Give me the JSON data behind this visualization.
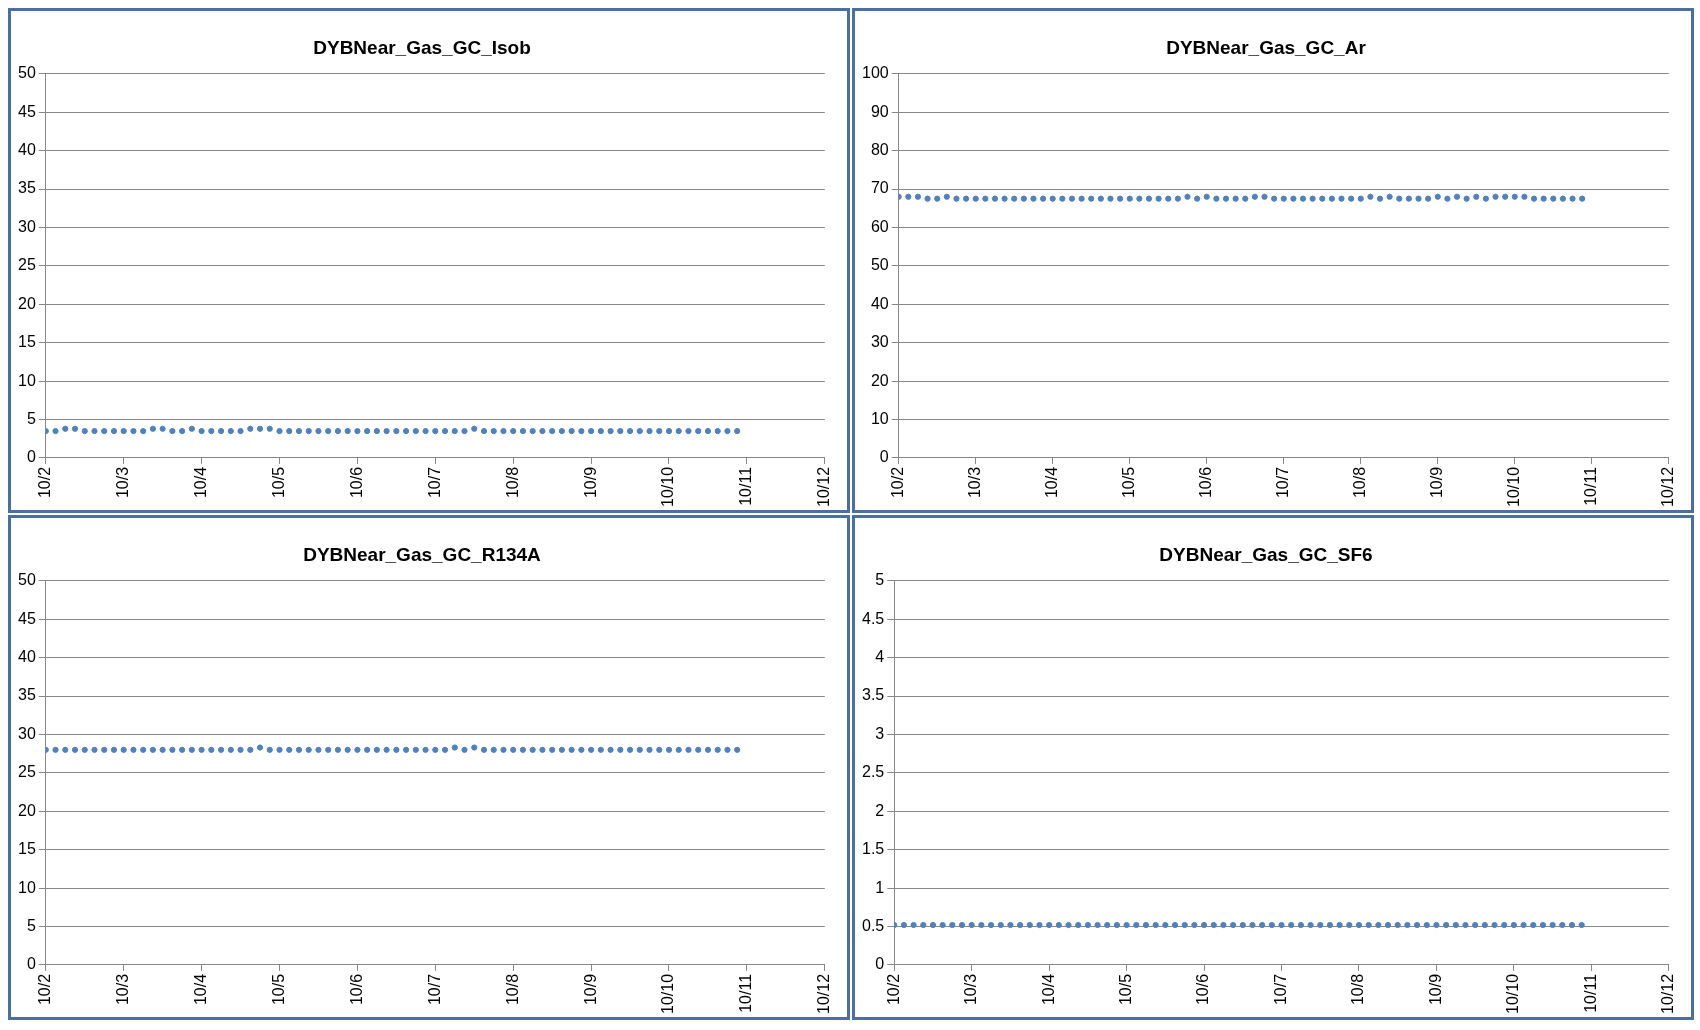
{
  "chart_data": [
    {
      "type": "scatter",
      "title": "DYBNear_Gas_GC_Isob",
      "marker": "circle",
      "grid": "y",
      "legend": false,
      "x": [
        "--10-02T00:00",
        "--10-02T03:00",
        "--10-02T06:00",
        "--10-02T09:00",
        "--10-02T12:00",
        "--10-02T15:00",
        "--10-02T18:00",
        "--10-02T21:00",
        "--10-03T00:00",
        "--10-03T03:00",
        "--10-03T06:00",
        "--10-03T09:00",
        "--10-03T12:00",
        "--10-03T15:00",
        "--10-03T18:00",
        "--10-03T21:00",
        "--10-04T00:00",
        "--10-04T03:00",
        "--10-04T06:00",
        "--10-04T09:00",
        "--10-04T12:00",
        "--10-04T15:00",
        "--10-04T18:00",
        "--10-04T21:00",
        "--10-05T00:00",
        "--10-05T03:00",
        "--10-05T06:00",
        "--10-05T09:00",
        "--10-05T12:00",
        "--10-05T15:00",
        "--10-05T18:00",
        "--10-05T21:00",
        "--10-06T00:00",
        "--10-06T03:00",
        "--10-06T06:00",
        "--10-06T09:00",
        "--10-06T12:00",
        "--10-06T15:00",
        "--10-06T18:00",
        "--10-06T21:00",
        "--10-07T00:00",
        "--10-07T03:00",
        "--10-07T06:00",
        "--10-07T09:00",
        "--10-07T12:00",
        "--10-07T15:00",
        "--10-07T18:00",
        "--10-07T21:00",
        "--10-08T00:00",
        "--10-08T03:00",
        "--10-08T06:00",
        "--10-08T09:00",
        "--10-08T12:00",
        "--10-08T15:00",
        "--10-08T18:00",
        "--10-08T21:00",
        "--10-09T00:00",
        "--10-09T03:00",
        "--10-09T06:00",
        "--10-09T09:00",
        "--10-09T12:00",
        "--10-09T15:00",
        "--10-09T18:00",
        "--10-09T21:00",
        "--10-10T00:00",
        "--10-10T03:00",
        "--10-10T06:00",
        "--10-10T09:00",
        "--10-10T12:00",
        "--10-10T15:00",
        "--10-10T18:00",
        "--10-10T21:00"
      ],
      "series": [
        {
          "color": "#4f81bd",
          "values": [
            3.5,
            3.5,
            3.8,
            3.8,
            3.5,
            3.5,
            3.5,
            3.5,
            3.5,
            3.5,
            3.5,
            3.8,
            3.8,
            3.5,
            3.5,
            3.8,
            3.5,
            3.5,
            3.5,
            3.5,
            3.5,
            3.8,
            3.8,
            3.8,
            3.5,
            3.5,
            3.5,
            3.5,
            3.5,
            3.5,
            3.5,
            3.5,
            3.5,
            3.5,
            3.5,
            3.5,
            3.5,
            3.5,
            3.5,
            3.5,
            3.5,
            3.5,
            3.5,
            3.5,
            3.8,
            3.5,
            3.5,
            3.5,
            3.5,
            3.5,
            3.5,
            3.5,
            3.5,
            3.5,
            3.5,
            3.5,
            3.5,
            3.5,
            3.5,
            3.5,
            3.5,
            3.5,
            3.5,
            3.5,
            3.5,
            3.5,
            3.5,
            3.5,
            3.5,
            3.5,
            3.5,
            3.5
          ]
        }
      ],
      "xlim": [
        "--10-02",
        "--10-12"
      ],
      "xticks": [
        {
          "value": "--10-02",
          "label": "10/2"
        },
        {
          "value": "--10-03",
          "label": "10/3"
        },
        {
          "value": "--10-04",
          "label": "10/4"
        },
        {
          "value": "--10-05",
          "label": "10/5"
        },
        {
          "value": "--10-06",
          "label": "10/6"
        },
        {
          "value": "--10-07",
          "label": "10/7"
        },
        {
          "value": "--10-08",
          "label": "10/8"
        },
        {
          "value": "--10-09",
          "label": "10/9"
        },
        {
          "value": "--10-10",
          "label": "10/10"
        },
        {
          "value": "--10-11",
          "label": "10/11"
        },
        {
          "value": "--10-12",
          "label": "10/12"
        }
      ],
      "ylim": [
        0,
        50
      ],
      "yticks": [
        0,
        5,
        10,
        15,
        20,
        25,
        30,
        35,
        40,
        45,
        50
      ]
    },
    {
      "type": "scatter",
      "title": "DYBNear_Gas_GC_Ar",
      "marker": "circle",
      "grid": "y",
      "legend": false,
      "x": [
        "--10-02T00:00",
        "--10-02T03:00",
        "--10-02T06:00",
        "--10-02T09:00",
        "--10-02T12:00",
        "--10-02T15:00",
        "--10-02T18:00",
        "--10-02T21:00",
        "--10-03T00:00",
        "--10-03T03:00",
        "--10-03T06:00",
        "--10-03T09:00",
        "--10-03T12:00",
        "--10-03T15:00",
        "--10-03T18:00",
        "--10-03T21:00",
        "--10-04T00:00",
        "--10-04T03:00",
        "--10-04T06:00",
        "--10-04T09:00",
        "--10-04T12:00",
        "--10-04T15:00",
        "--10-04T18:00",
        "--10-04T21:00",
        "--10-05T00:00",
        "--10-05T03:00",
        "--10-05T06:00",
        "--10-05T09:00",
        "--10-05T12:00",
        "--10-05T15:00",
        "--10-05T18:00",
        "--10-05T21:00",
        "--10-06T00:00",
        "--10-06T03:00",
        "--10-06T06:00",
        "--10-06T09:00",
        "--10-06T12:00",
        "--10-06T15:00",
        "--10-06T18:00",
        "--10-06T21:00",
        "--10-07T00:00",
        "--10-07T03:00",
        "--10-07T06:00",
        "--10-07T09:00",
        "--10-07T12:00",
        "--10-07T15:00",
        "--10-07T18:00",
        "--10-07T21:00",
        "--10-08T00:00",
        "--10-08T03:00",
        "--10-08T06:00",
        "--10-08T09:00",
        "--10-08T12:00",
        "--10-08T15:00",
        "--10-08T18:00",
        "--10-08T21:00",
        "--10-09T00:00",
        "--10-09T03:00",
        "--10-09T06:00",
        "--10-09T09:00",
        "--10-09T12:00",
        "--10-09T15:00",
        "--10-09T18:00",
        "--10-09T21:00",
        "--10-10T00:00",
        "--10-10T03:00",
        "--10-10T06:00",
        "--10-10T09:00",
        "--10-10T12:00",
        "--10-10T15:00",
        "--10-10T18:00",
        "--10-10T21:00"
      ],
      "series": [
        {
          "color": "#4f81bd",
          "values": [
            68,
            68,
            68,
            67.5,
            67.5,
            68,
            67.5,
            67.5,
            67.5,
            67.5,
            67.5,
            67.5,
            67.5,
            67.5,
            67.5,
            67.5,
            67.5,
            67.5,
            67.5,
            67.5,
            67.5,
            67.5,
            67.5,
            67.5,
            67.5,
            67.5,
            67.5,
            67.5,
            67.5,
            67.5,
            68,
            67.5,
            68,
            67.5,
            67.5,
            67.5,
            67.5,
            68,
            68,
            67.5,
            67.5,
            67.5,
            67.5,
            67.5,
            67.5,
            67.5,
            67.5,
            67.5,
            67.5,
            68,
            67.5,
            68,
            67.5,
            67.5,
            67.5,
            67.5,
            68,
            67.5,
            68,
            67.5,
            68,
            67.5,
            68,
            68,
            68,
            68,
            67.5,
            67.5,
            67.5,
            67.5,
            67.5,
            67.5
          ]
        }
      ],
      "xlim": [
        "--10-02",
        "--10-12"
      ],
      "xticks": [
        {
          "value": "--10-02",
          "label": "10/2"
        },
        {
          "value": "--10-03",
          "label": "10/3"
        },
        {
          "value": "--10-04",
          "label": "10/4"
        },
        {
          "value": "--10-05",
          "label": "10/5"
        },
        {
          "value": "--10-06",
          "label": "10/6"
        },
        {
          "value": "--10-07",
          "label": "10/7"
        },
        {
          "value": "--10-08",
          "label": "10/8"
        },
        {
          "value": "--10-09",
          "label": "10/9"
        },
        {
          "value": "--10-10",
          "label": "10/10"
        },
        {
          "value": "--10-11",
          "label": "10/11"
        },
        {
          "value": "--10-12",
          "label": "10/12"
        }
      ],
      "ylim": [
        0,
        100
      ],
      "yticks": [
        0,
        10,
        20,
        30,
        40,
        50,
        60,
        70,
        80,
        90,
        100
      ]
    },
    {
      "type": "scatter",
      "title": "DYBNear_Gas_GC_R134A",
      "marker": "circle",
      "grid": "y",
      "legend": false,
      "x": [
        "--10-02T00:00",
        "--10-02T03:00",
        "--10-02T06:00",
        "--10-02T09:00",
        "--10-02T12:00",
        "--10-02T15:00",
        "--10-02T18:00",
        "--10-02T21:00",
        "--10-03T00:00",
        "--10-03T03:00",
        "--10-03T06:00",
        "--10-03T09:00",
        "--10-03T12:00",
        "--10-03T15:00",
        "--10-03T18:00",
        "--10-03T21:00",
        "--10-04T00:00",
        "--10-04T03:00",
        "--10-04T06:00",
        "--10-04T09:00",
        "--10-04T12:00",
        "--10-04T15:00",
        "--10-04T18:00",
        "--10-04T21:00",
        "--10-05T00:00",
        "--10-05T03:00",
        "--10-05T06:00",
        "--10-05T09:00",
        "--10-05T12:00",
        "--10-05T15:00",
        "--10-05T18:00",
        "--10-05T21:00",
        "--10-06T00:00",
        "--10-06T03:00",
        "--10-06T06:00",
        "--10-06T09:00",
        "--10-06T12:00",
        "--10-06T15:00",
        "--10-06T18:00",
        "--10-06T21:00",
        "--10-07T00:00",
        "--10-07T03:00",
        "--10-07T06:00",
        "--10-07T09:00",
        "--10-07T12:00",
        "--10-07T15:00",
        "--10-07T18:00",
        "--10-07T21:00",
        "--10-08T00:00",
        "--10-08T03:00",
        "--10-08T06:00",
        "--10-08T09:00",
        "--10-08T12:00",
        "--10-08T15:00",
        "--10-08T18:00",
        "--10-08T21:00",
        "--10-09T00:00",
        "--10-09T03:00",
        "--10-09T06:00",
        "--10-09T09:00",
        "--10-09T12:00",
        "--10-09T15:00",
        "--10-09T18:00",
        "--10-09T21:00",
        "--10-10T00:00",
        "--10-10T03:00",
        "--10-10T06:00",
        "--10-10T09:00",
        "--10-10T12:00",
        "--10-10T15:00",
        "--10-10T18:00",
        "--10-10T21:00"
      ],
      "series": [
        {
          "color": "#4f81bd",
          "values": [
            28,
            28,
            28,
            28,
            28,
            28,
            28,
            28,
            28,
            28,
            28,
            28,
            28,
            28,
            28,
            28,
            28,
            28,
            28,
            28,
            28,
            28,
            28.3,
            28,
            28,
            28,
            28,
            28,
            28,
            28,
            28,
            28,
            28,
            28,
            28,
            28,
            28,
            28,
            28,
            28,
            28,
            28,
            28.3,
            28,
            28.3,
            28,
            28,
            28,
            28,
            28,
            28,
            28,
            28,
            28,
            28,
            28,
            28,
            28,
            28,
            28,
            28,
            28,
            28,
            28,
            28,
            28,
            28,
            28,
            28,
            28,
            28,
            28
          ]
        }
      ],
      "xlim": [
        "--10-02",
        "--10-12"
      ],
      "xticks": [
        {
          "value": "--10-02",
          "label": "10/2"
        },
        {
          "value": "--10-03",
          "label": "10/3"
        },
        {
          "value": "--10-04",
          "label": "10/4"
        },
        {
          "value": "--10-05",
          "label": "10/5"
        },
        {
          "value": "--10-06",
          "label": "10/6"
        },
        {
          "value": "--10-07",
          "label": "10/7"
        },
        {
          "value": "--10-08",
          "label": "10/8"
        },
        {
          "value": "--10-09",
          "label": "10/9"
        },
        {
          "value": "--10-10",
          "label": "10/10"
        },
        {
          "value": "--10-11",
          "label": "10/11"
        },
        {
          "value": "--10-12",
          "label": "10/12"
        }
      ],
      "ylim": [
        0,
        50
      ],
      "yticks": [
        0,
        5,
        10,
        15,
        20,
        25,
        30,
        35,
        40,
        45,
        50
      ]
    },
    {
      "type": "scatter",
      "title": "DYBNear_Gas_GC_SF6",
      "marker": "circle",
      "grid": "y",
      "legend": false,
      "x": [
        "--10-02T00:00",
        "--10-02T03:00",
        "--10-02T06:00",
        "--10-02T09:00",
        "--10-02T12:00",
        "--10-02T15:00",
        "--10-02T18:00",
        "--10-02T21:00",
        "--10-03T00:00",
        "--10-03T03:00",
        "--10-03T06:00",
        "--10-03T09:00",
        "--10-03T12:00",
        "--10-03T15:00",
        "--10-03T18:00",
        "--10-03T21:00",
        "--10-04T00:00",
        "--10-04T03:00",
        "--10-04T06:00",
        "--10-04T09:00",
        "--10-04T12:00",
        "--10-04T15:00",
        "--10-04T18:00",
        "--10-04T21:00",
        "--10-05T00:00",
        "--10-05T03:00",
        "--10-05T06:00",
        "--10-05T09:00",
        "--10-05T12:00",
        "--10-05T15:00",
        "--10-05T18:00",
        "--10-05T21:00",
        "--10-06T00:00",
        "--10-06T03:00",
        "--10-06T06:00",
        "--10-06T09:00",
        "--10-06T12:00",
        "--10-06T15:00",
        "--10-06T18:00",
        "--10-06T21:00",
        "--10-07T00:00",
        "--10-07T03:00",
        "--10-07T06:00",
        "--10-07T09:00",
        "--10-07T12:00",
        "--10-07T15:00",
        "--10-07T18:00",
        "--10-07T21:00",
        "--10-08T00:00",
        "--10-08T03:00",
        "--10-08T06:00",
        "--10-08T09:00",
        "--10-08T12:00",
        "--10-08T15:00",
        "--10-08T18:00",
        "--10-08T21:00",
        "--10-09T00:00",
        "--10-09T03:00",
        "--10-09T06:00",
        "--10-09T09:00",
        "--10-09T12:00",
        "--10-09T15:00",
        "--10-09T18:00",
        "--10-09T21:00",
        "--10-10T00:00",
        "--10-10T03:00",
        "--10-10T06:00",
        "--10-10T09:00",
        "--10-10T12:00",
        "--10-10T15:00",
        "--10-10T18:00",
        "--10-10T21:00"
      ],
      "series": [
        {
          "color": "#4f81bd",
          "values": [
            0.52,
            0.52,
            0.52,
            0.52,
            0.52,
            0.52,
            0.52,
            0.52,
            0.52,
            0.52,
            0.52,
            0.52,
            0.52,
            0.52,
            0.52,
            0.52,
            0.52,
            0.52,
            0.52,
            0.52,
            0.52,
            0.52,
            0.52,
            0.52,
            0.52,
            0.52,
            0.52,
            0.52,
            0.52,
            0.52,
            0.52,
            0.52,
            0.52,
            0.52,
            0.52,
            0.52,
            0.52,
            0.52,
            0.52,
            0.52,
            0.52,
            0.52,
            0.52,
            0.52,
            0.52,
            0.52,
            0.52,
            0.52,
            0.52,
            0.52,
            0.52,
            0.52,
            0.52,
            0.52,
            0.52,
            0.52,
            0.52,
            0.52,
            0.52,
            0.52,
            0.52,
            0.52,
            0.52,
            0.52,
            0.52,
            0.52,
            0.52,
            0.52,
            0.52,
            0.52,
            0.52,
            0.52
          ]
        }
      ],
      "xlim": [
        "--10-02",
        "--10-12"
      ],
      "xticks": [
        {
          "value": "--10-02",
          "label": "10/2"
        },
        {
          "value": "--10-03",
          "label": "10/3"
        },
        {
          "value": "--10-04",
          "label": "10/4"
        },
        {
          "value": "--10-05",
          "label": "10/5"
        },
        {
          "value": "--10-06",
          "label": "10/6"
        },
        {
          "value": "--10-07",
          "label": "10/7"
        },
        {
          "value": "--10-08",
          "label": "10/8"
        },
        {
          "value": "--10-09",
          "label": "10/9"
        },
        {
          "value": "--10-10",
          "label": "10/10"
        },
        {
          "value": "--10-11",
          "label": "10/11"
        },
        {
          "value": "--10-12",
          "label": "10/12"
        }
      ],
      "ylim": [
        0,
        5
      ],
      "yticks": [
        0,
        0.5,
        1,
        1.5,
        2,
        2.5,
        3,
        3.5,
        4,
        4.5,
        5
      ]
    }
  ]
}
